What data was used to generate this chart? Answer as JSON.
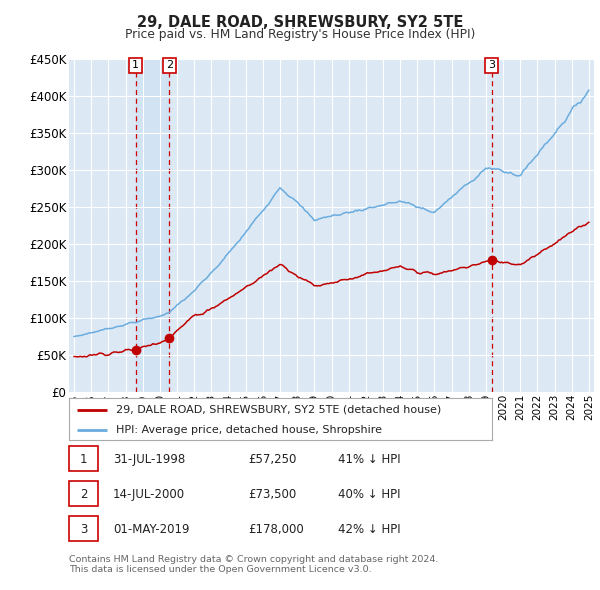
{
  "title": "29, DALE ROAD, SHREWSBURY, SY2 5TE",
  "subtitle": "Price paid vs. HM Land Registry's House Price Index (HPI)",
  "ylim": [
    0,
    450000
  ],
  "yticks": [
    0,
    50000,
    100000,
    150000,
    200000,
    250000,
    300000,
    350000,
    400000,
    450000
  ],
  "ytick_labels": [
    "£0",
    "£50K",
    "£100K",
    "£150K",
    "£200K",
    "£250K",
    "£300K",
    "£350K",
    "£400K",
    "£450K"
  ],
  "background_color": "#ffffff",
  "plot_bg_color": "#dce9f5",
  "grid_color": "#ffffff",
  "hpi_color": "#6aacde",
  "price_color": "#c00000",
  "vline_color": "#cc0000",
  "sale_year_floats": [
    1998.58,
    2000.54,
    2019.33
  ],
  "sale_prices": [
    57250,
    73500,
    178000
  ],
  "sale_labels": [
    "1",
    "2",
    "3"
  ],
  "legend_label_price": "29, DALE ROAD, SHREWSBURY, SY2 5TE (detached house)",
  "legend_label_hpi": "HPI: Average price, detached house, Shropshire",
  "table_rows": [
    [
      "1",
      "31-JUL-1998",
      "£57,250",
      "41% ↓ HPI"
    ],
    [
      "2",
      "14-JUL-2000",
      "£73,500",
      "40% ↓ HPI"
    ],
    [
      "3",
      "01-MAY-2019",
      "£178,000",
      "42% ↓ HPI"
    ]
  ],
  "footer": "Contains HM Land Registry data © Crown copyright and database right 2024.\nThis data is licensed under the Open Government Licence v3.0.",
  "x_start_year": 1995,
  "x_end_year": 2025
}
